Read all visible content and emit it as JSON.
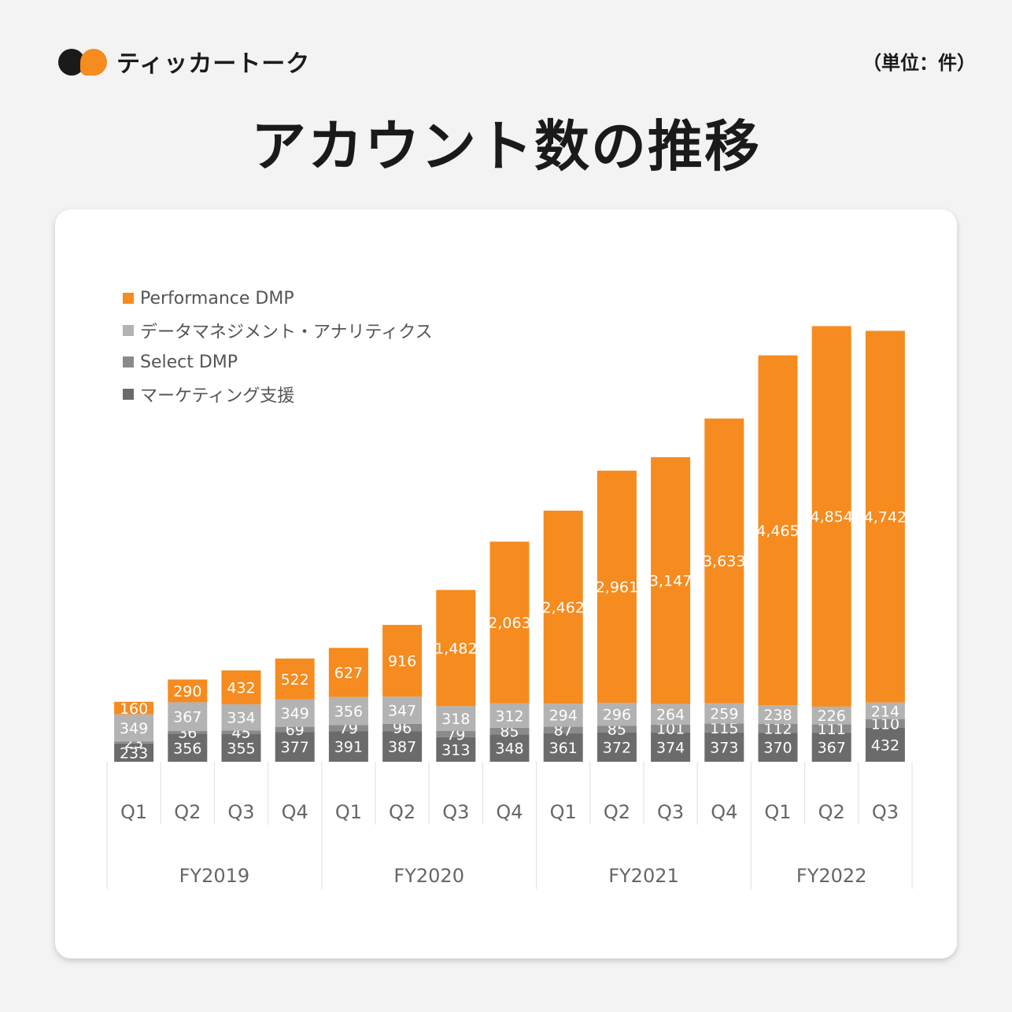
{
  "header": {
    "brand": "ティッカートーク",
    "unit": "（単位：件）",
    "title": "アカウント数の推移"
  },
  "colors": {
    "performance": "#f68b1f",
    "data_mgmt": "#b3b3b3",
    "select": "#8a8a8a",
    "marketing": "#6b6b6b"
  },
  "chart_data": {
    "type": "bar",
    "stacked": true,
    "categories": [
      "Q1",
      "Q2",
      "Q3",
      "Q4",
      "Q1",
      "Q2",
      "Q3",
      "Q4",
      "Q1",
      "Q2",
      "Q3",
      "Q4",
      "Q1",
      "Q2",
      "Q3"
    ],
    "groups": [
      {
        "label": "FY2019",
        "count": 4
      },
      {
        "label": "FY2020",
        "count": 4
      },
      {
        "label": "FY2021",
        "count": 4
      },
      {
        "label": "FY2022",
        "count": 3
      }
    ],
    "series": [
      {
        "name": "マーケティング支援",
        "color": "#6b6b6b",
        "values": [
          233,
          356,
          355,
          377,
          391,
          387,
          313,
          348,
          361,
          372,
          374,
          373,
          370,
          367,
          432
        ],
        "labels": [
          "233",
          "356",
          "355",
          "377",
          "391",
          "387",
          "313",
          "348",
          "361",
          "372",
          "374",
          "373",
          "370",
          "367",
          "432"
        ]
      },
      {
        "name": "Select DMP",
        "color": "#8a8a8a",
        "values": [
          23,
          36,
          45,
          69,
          79,
          96,
          79,
          85,
          87,
          85,
          101,
          115,
          112,
          111,
          110
        ],
        "labels": [
          "23",
          "36",
          "45",
          "69",
          "79",
          "96",
          "79",
          "85",
          "87",
          "85",
          "101",
          "115",
          "112",
          "111",
          "110"
        ]
      },
      {
        "name": "データマネジメント・アナリティクス",
        "color": "#b3b3b3",
        "values": [
          349,
          367,
          334,
          349,
          356,
          347,
          318,
          312,
          294,
          296,
          264,
          259,
          238,
          226,
          214
        ],
        "labels": [
          "349",
          "367",
          "334",
          "349",
          "356",
          "347",
          "318",
          "312",
          "294",
          "296",
          "264",
          "259",
          "238",
          "226",
          "214"
        ]
      },
      {
        "name": "Performance DMP",
        "color": "#f68b1f",
        "values": [
          160,
          290,
          432,
          522,
          627,
          916,
          1482,
          2063,
          2462,
          2961,
          3147,
          3633,
          4465,
          4854,
          4742
        ],
        "labels": [
          "160",
          "290",
          "432",
          "522",
          "627",
          "916",
          "1,482",
          "2,063",
          "2,462",
          "2,961",
          "3,147",
          "3,633",
          "4,465",
          "4,854",
          "4,742"
        ]
      }
    ],
    "legend_order": [
      "Performance DMP",
      "データマネジメント・アナリティクス",
      "Select DMP",
      "マーケティング支援"
    ],
    "legend_position": "top-left",
    "xlabel": "",
    "ylabel": "",
    "ylim": [
      0,
      5600
    ],
    "grid": false
  }
}
